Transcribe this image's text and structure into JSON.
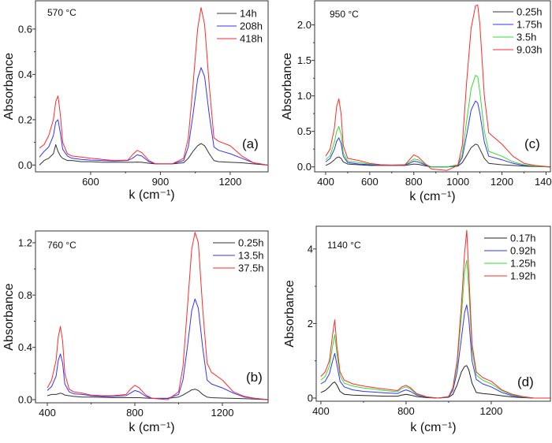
{
  "chart_data": [
    {
      "type": "line",
      "panel_label": "(a)",
      "annotation": "570 °C",
      "xlabel": "k (cm⁻¹)",
      "ylabel": "Absorbance",
      "xlim": [
        363,
        1363
      ],
      "ylim": [
        -0.03,
        0.725
      ],
      "xticks": [
        600,
        900,
        1200
      ],
      "yticks": [
        0.0,
        0.2,
        0.4,
        0.6
      ],
      "ytick_labels": [
        "0.0",
        "0.2",
        "0.4",
        "0.6"
      ],
      "legend": "top-right",
      "grid": false,
      "x": [
        380,
        400,
        420,
        440,
        450,
        460,
        470,
        480,
        500,
        520,
        560,
        600,
        650,
        700,
        760,
        780,
        800,
        820,
        850,
        880,
        950,
        1000,
        1020,
        1040,
        1060,
        1075,
        1090,
        1110,
        1130,
        1150,
        1200,
        1250,
        1300,
        1360
      ],
      "series": [
        {
          "name": "14h",
          "color": "#333333",
          "values": [
            0.0,
            0.02,
            0.03,
            0.05,
            0.09,
            0.06,
            0.04,
            0.03,
            0.02,
            0.02,
            0.015,
            0.015,
            0.012,
            0.012,
            0.012,
            0.012,
            0.013,
            0.012,
            0.008,
            0.005,
            0.005,
            0.01,
            0.03,
            0.06,
            0.085,
            0.095,
            0.085,
            0.05,
            0.02,
            0.015,
            0.012,
            0.01,
            0.005,
            0.0
          ]
        },
        {
          "name": "208h",
          "color": "#3333ff",
          "values": [
            0.035,
            0.06,
            0.08,
            0.13,
            0.19,
            0.2,
            0.14,
            0.07,
            0.04,
            0.03,
            0.025,
            0.022,
            0.02,
            0.018,
            0.02,
            0.03,
            0.045,
            0.04,
            0.015,
            0.005,
            0.005,
            0.02,
            0.08,
            0.22,
            0.38,
            0.43,
            0.39,
            0.22,
            0.08,
            0.065,
            0.05,
            0.03,
            0.01,
            0.0
          ]
        },
        {
          "name": "418h",
          "color": "#ff2a2a",
          "values": [
            0.075,
            0.09,
            0.13,
            0.2,
            0.28,
            0.305,
            0.22,
            0.1,
            0.05,
            0.04,
            0.035,
            0.03,
            0.025,
            0.02,
            0.022,
            0.045,
            0.065,
            0.055,
            0.02,
            0.005,
            0.005,
            0.03,
            0.12,
            0.35,
            0.6,
            0.695,
            0.62,
            0.35,
            0.12,
            0.105,
            0.085,
            0.04,
            0.01,
            0.0
          ]
        }
      ]
    },
    {
      "type": "line",
      "panel_label": "(c)",
      "annotation": "950 °C",
      "xlabel": "k (cm⁻¹)",
      "ylabel": "Absorbance",
      "xlim": [
        350,
        1420
      ],
      "ylim": [
        -0.07,
        2.34
      ],
      "xticks": [
        400,
        600,
        800,
        1000,
        1200,
        1400
      ],
      "yticks": [
        0.0,
        0.5,
        1.0,
        1.5,
        2.0
      ],
      "ytick_labels": [
        "0.0",
        "0.5",
        "1.0",
        "1.5",
        "2.0"
      ],
      "legend": "top-right",
      "grid": false,
      "x": [
        400,
        420,
        440,
        450,
        460,
        470,
        480,
        500,
        550,
        600,
        650,
        700,
        760,
        780,
        800,
        820,
        850,
        880,
        950,
        1000,
        1020,
        1040,
        1060,
        1080,
        1090,
        1100,
        1120,
        1140,
        1200,
        1250,
        1300,
        1350,
        1420
      ],
      "series": [
        {
          "name": "0.25h",
          "color": "#333333",
          "values": [
            0.02,
            0.05,
            0.1,
            0.13,
            0.14,
            0.12,
            0.07,
            0.04,
            0.03,
            0.02,
            0.02,
            0.02,
            0.02,
            0.03,
            0.04,
            0.035,
            0.015,
            0.0,
            0.0,
            0.01,
            0.06,
            0.16,
            0.27,
            0.32,
            0.31,
            0.25,
            0.12,
            0.05,
            0.03,
            0.02,
            0.01,
            0.005,
            0.0
          ]
        },
        {
          "name": "1.75h",
          "color": "#3333ff",
          "values": [
            0.07,
            0.12,
            0.25,
            0.36,
            0.41,
            0.33,
            0.15,
            0.06,
            0.04,
            0.03,
            0.025,
            0.02,
            0.025,
            0.05,
            0.08,
            0.07,
            0.03,
            0.0,
            0.0,
            0.02,
            0.13,
            0.45,
            0.8,
            0.93,
            0.9,
            0.75,
            0.35,
            0.15,
            0.1,
            0.05,
            0.02,
            0.01,
            0.0
          ]
        },
        {
          "name": "3.5h",
          "color": "#33dd33",
          "values": [
            0.1,
            0.16,
            0.35,
            0.5,
            0.57,
            0.46,
            0.2,
            0.08,
            0.06,
            0.04,
            0.03,
            0.025,
            0.03,
            0.07,
            0.11,
            0.1,
            0.04,
            0.0,
            0.0,
            0.03,
            0.18,
            0.65,
            1.1,
            1.29,
            1.27,
            1.05,
            0.5,
            0.22,
            0.15,
            0.07,
            0.03,
            0.01,
            0.0
          ]
        },
        {
          "name": "9.03h",
          "color": "#ff2a2a",
          "values": [
            0.15,
            0.25,
            0.55,
            0.85,
            0.96,
            0.75,
            0.3,
            0.12,
            0.09,
            0.05,
            0.03,
            0.025,
            0.03,
            0.1,
            0.17,
            0.14,
            0.05,
            -0.03,
            -0.05,
            0.02,
            0.3,
            1.2,
            1.95,
            2.27,
            2.28,
            2.0,
            1.0,
            0.48,
            0.32,
            0.15,
            0.05,
            0.02,
            0.0
          ]
        }
      ]
    },
    {
      "type": "line",
      "panel_label": "(b)",
      "annotation": "760 °C",
      "xlabel": "k (cm⁻¹)",
      "ylabel": "Absorbance",
      "xlim": [
        346,
        1409
      ],
      "ylim": [
        -0.024,
        1.29
      ],
      "xticks": [
        400,
        800,
        1200
      ],
      "yticks": [
        0.0,
        0.4,
        0.8,
        1.2
      ],
      "ytick_labels": [
        "0.0",
        "0.4",
        "0.8",
        "1.2"
      ],
      "legend": "top-right",
      "grid": false,
      "x": [
        400,
        420,
        440,
        450,
        460,
        470,
        480,
        500,
        520,
        560,
        600,
        650,
        700,
        760,
        780,
        800,
        820,
        850,
        880,
        950,
        1000,
        1020,
        1040,
        1060,
        1075,
        1090,
        1110,
        1130,
        1150,
        1200,
        1250,
        1300,
        1350,
        1409
      ],
      "series": [
        {
          "name": "0.25h",
          "color": "#333333",
          "values": [
            0.03,
            0.04,
            0.04,
            0.045,
            0.05,
            0.045,
            0.035,
            0.03,
            0.025,
            0.02,
            0.02,
            0.018,
            0.015,
            0.015,
            0.015,
            0.015,
            0.015,
            0.012,
            0.01,
            0.01,
            0.02,
            0.035,
            0.055,
            0.075,
            0.08,
            0.07,
            0.04,
            0.02,
            0.015,
            0.012,
            0.01,
            0.008,
            0.005,
            0.0
          ]
        },
        {
          "name": "13.5h",
          "color": "#3333ff",
          "values": [
            0.07,
            0.1,
            0.18,
            0.3,
            0.35,
            0.28,
            0.12,
            0.06,
            0.045,
            0.04,
            0.03,
            0.025,
            0.025,
            0.03,
            0.05,
            0.07,
            0.06,
            0.025,
            0.01,
            0.01,
            0.04,
            0.15,
            0.4,
            0.68,
            0.77,
            0.7,
            0.4,
            0.15,
            0.12,
            0.09,
            0.05,
            0.02,
            0.01,
            0.0
          ]
        },
        {
          "name": "37.5h",
          "color": "#ff2a2a",
          "values": [
            0.09,
            0.15,
            0.3,
            0.48,
            0.56,
            0.45,
            0.2,
            0.08,
            0.06,
            0.05,
            0.035,
            0.03,
            0.03,
            0.04,
            0.08,
            0.11,
            0.09,
            0.035,
            0.01,
            0.0,
            0.06,
            0.25,
            0.7,
            1.15,
            1.28,
            1.2,
            0.7,
            0.28,
            0.21,
            0.15,
            0.06,
            0.025,
            0.01,
            0.0
          ]
        }
      ]
    },
    {
      "type": "line",
      "panel_label": "(d)",
      "annotation": "1140 °C",
      "xlabel": "k (cm⁻¹)",
      "ylabel": "Absorbance",
      "xlim": [
        378,
        1478
      ],
      "ylim": [
        -0.085,
        4.61
      ],
      "xticks": [
        400,
        800,
        1200
      ],
      "yticks": [
        0,
        2,
        4
      ],
      "ytick_labels": [
        "0",
        "2",
        "4"
      ],
      "legend": "top-right",
      "grid": false,
      "x": [
        400,
        420,
        440,
        455,
        465,
        475,
        490,
        510,
        550,
        600,
        650,
        700,
        760,
        780,
        800,
        820,
        850,
        900,
        950,
        1000,
        1020,
        1040,
        1060,
        1075,
        1085,
        1095,
        1110,
        1130,
        1160,
        1200,
        1250,
        1300,
        1350,
        1400,
        1478
      ],
      "series": [
        {
          "name": "0.17h",
          "color": "#222222",
          "values": [
            0.15,
            0.2,
            0.3,
            0.4,
            0.43,
            0.35,
            0.18,
            0.1,
            0.08,
            0.07,
            0.06,
            0.05,
            0.05,
            0.08,
            0.1,
            0.08,
            0.04,
            0.01,
            0.0,
            0.02,
            0.1,
            0.35,
            0.7,
            0.85,
            0.87,
            0.75,
            0.4,
            0.15,
            0.12,
            0.1,
            0.06,
            0.03,
            0.01,
            0.0,
            0.0
          ]
        },
        {
          "name": "0.92h",
          "color": "#3333ff",
          "values": [
            0.38,
            0.45,
            0.65,
            1.0,
            1.2,
            0.9,
            0.45,
            0.3,
            0.22,
            0.18,
            0.16,
            0.14,
            0.12,
            0.18,
            0.22,
            0.18,
            0.08,
            0.02,
            0.0,
            0.03,
            0.2,
            0.7,
            1.6,
            2.3,
            2.5,
            2.1,
            1.0,
            0.5,
            0.38,
            0.3,
            0.15,
            0.06,
            0.02,
            0.0,
            0.0
          ]
        },
        {
          "name": "1.25h",
          "color": "#33dd33",
          "values": [
            0.48,
            0.58,
            0.85,
            1.4,
            1.7,
            1.2,
            0.6,
            0.4,
            0.32,
            0.27,
            0.24,
            0.2,
            0.17,
            0.26,
            0.3,
            0.25,
            0.1,
            0.03,
            0.0,
            0.04,
            0.25,
            0.9,
            2.2,
            3.4,
            3.7,
            2.9,
            1.3,
            0.62,
            0.48,
            0.38,
            0.2,
            0.08,
            0.03,
            0.0,
            0.0
          ]
        },
        {
          "name": "1.92h",
          "color": "#ff2a2a",
          "values": [
            0.58,
            0.7,
            1.0,
            1.7,
            2.1,
            1.4,
            0.7,
            0.48,
            0.38,
            0.32,
            0.28,
            0.24,
            0.2,
            0.3,
            0.34,
            0.28,
            0.12,
            0.03,
            0.0,
            0.04,
            0.28,
            1.0,
            2.5,
            3.9,
            4.5,
            3.3,
            1.45,
            0.7,
            0.55,
            0.45,
            0.22,
            0.1,
            0.04,
            0.0,
            0.0
          ]
        }
      ]
    }
  ]
}
